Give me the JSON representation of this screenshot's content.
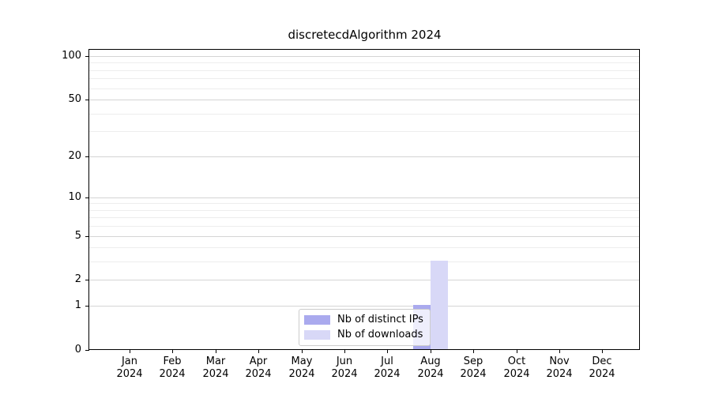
{
  "figure": {
    "title": "discretecdAlgorithm 2024"
  },
  "chart_data": {
    "type": "bar",
    "title": "discretecdAlgorithm 2024",
    "categories": [
      {
        "month": "Jan",
        "year": "2024"
      },
      {
        "month": "Feb",
        "year": "2024"
      },
      {
        "month": "Mar",
        "year": "2024"
      },
      {
        "month": "Apr",
        "year": "2024"
      },
      {
        "month": "May",
        "year": "2024"
      },
      {
        "month": "Jun",
        "year": "2024"
      },
      {
        "month": "Jul",
        "year": "2024"
      },
      {
        "month": "Aug",
        "year": "2024"
      },
      {
        "month": "Sep",
        "year": "2024"
      },
      {
        "month": "Oct",
        "year": "2024"
      },
      {
        "month": "Nov",
        "year": "2024"
      },
      {
        "month": "Dec",
        "year": "2024"
      }
    ],
    "series": [
      {
        "name": "Nb of distinct IPs",
        "color": "#aaaaee",
        "values": [
          0,
          0,
          0,
          0,
          0,
          0,
          0,
          1,
          0,
          0,
          0,
          0
        ]
      },
      {
        "name": "Nb of downloads",
        "color": "#d8d8f7",
        "values": [
          0,
          0,
          0,
          0,
          0,
          0,
          0,
          3,
          0,
          0,
          0,
          0
        ]
      }
    ],
    "y_axis": {
      "scale": "log1p",
      "ticks": [
        0,
        1,
        2,
        5,
        10,
        20,
        50,
        100
      ],
      "tick_labels": [
        "0",
        "1",
        "2",
        "5",
        "10",
        "20",
        "50",
        "100"
      ],
      "minor_ticks": [
        3,
        4,
        6,
        7,
        8,
        9,
        30,
        40,
        60,
        70,
        80,
        90
      ],
      "range": [
        0,
        112
      ]
    },
    "xlabel": "",
    "ylabel": "",
    "grid": "horizontal",
    "legend_position": "lower center",
    "colors": {
      "axis": "#000000",
      "major_grid": "#d4d4d4",
      "minor_grid": "#ededed",
      "legend_border": "#cccccc",
      "background": "#ffffff"
    }
  }
}
